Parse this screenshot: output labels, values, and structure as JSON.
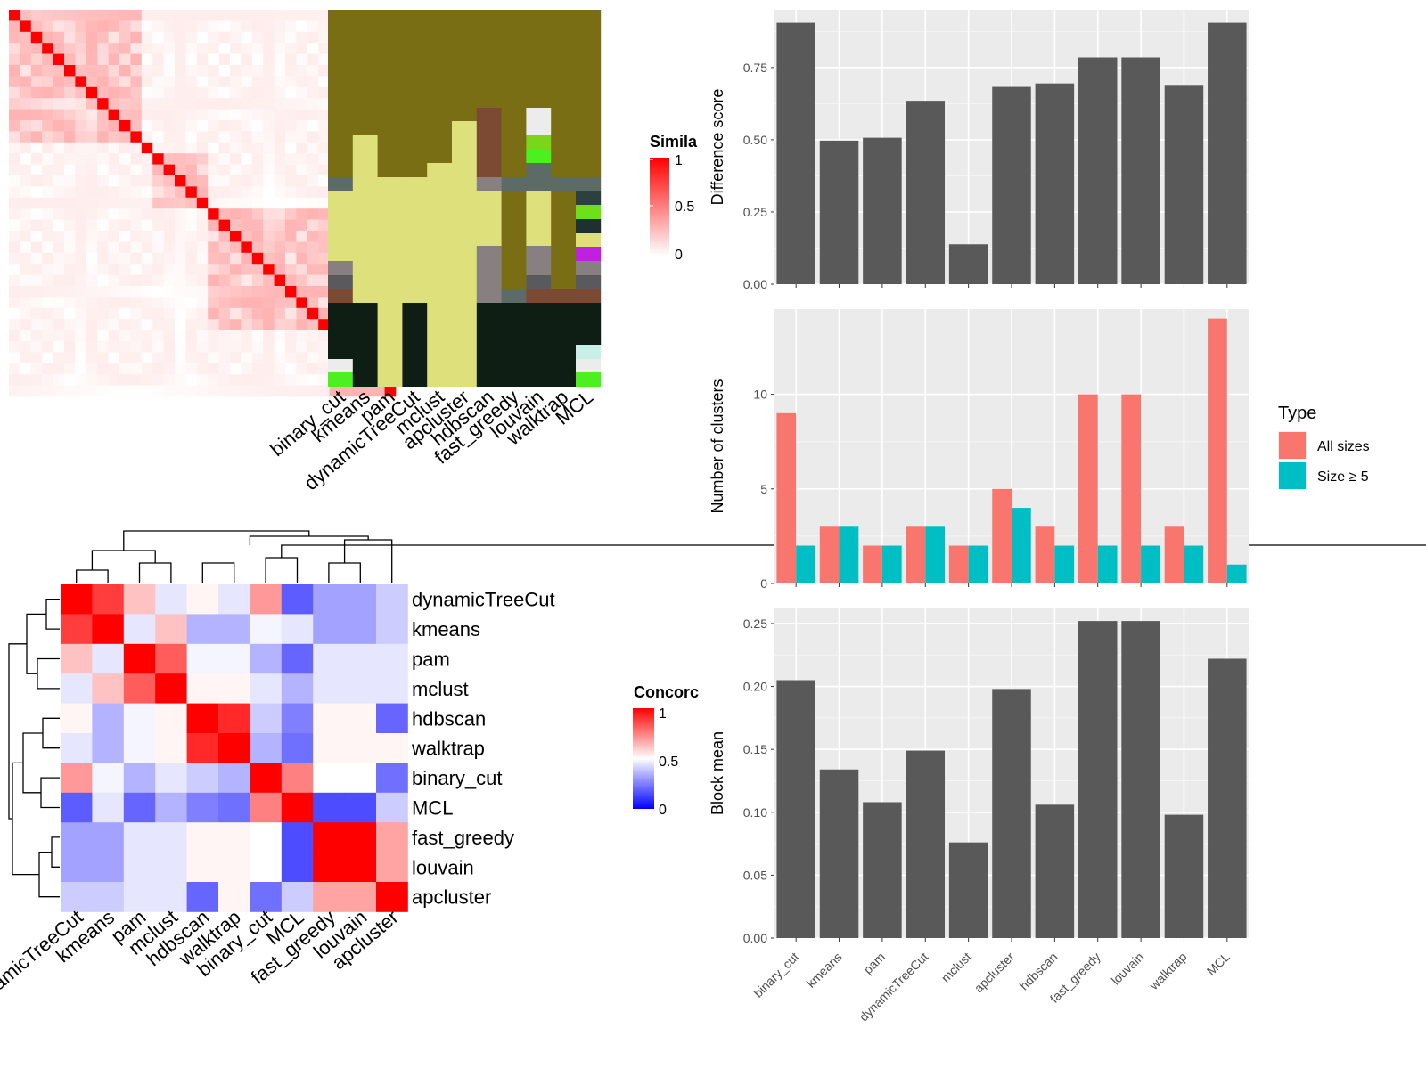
{
  "similarity_heatmap": {
    "legend_title": "Simila",
    "legend_ticks": [
      "1",
      "0.5",
      "0"
    ],
    "n_terms": 35
  },
  "annotation_panel": {
    "columns": [
      "binary_cut",
      "kmeans",
      "pam",
      "dynamicTreeCut",
      "mclust",
      "apcluster",
      "hdbscan",
      "fast_greedy",
      "louvain",
      "walktrap",
      "MCL"
    ]
  },
  "concordance_heatmap": {
    "legend_title": "Concorc",
    "legend_ticks": [
      "1",
      "0.5",
      "0"
    ],
    "labels": [
      "dynamicTreeCut",
      "kmeans",
      "pam",
      "mclust",
      "hdbscan",
      "walktrap",
      "binary_cut",
      "MCL",
      "fast_greedy",
      "louvain",
      "apcluster"
    ],
    "values": [
      [
        1.0,
        0.88,
        0.62,
        0.45,
        0.52,
        0.45,
        0.7,
        0.18,
        0.32,
        0.32,
        0.4
      ],
      [
        0.88,
        1.0,
        0.45,
        0.62,
        0.35,
        0.35,
        0.48,
        0.45,
        0.32,
        0.32,
        0.4
      ],
      [
        0.62,
        0.45,
        1.0,
        0.82,
        0.48,
        0.48,
        0.35,
        0.2,
        0.45,
        0.45,
        0.45
      ],
      [
        0.45,
        0.62,
        0.82,
        1.0,
        0.52,
        0.52,
        0.45,
        0.35,
        0.45,
        0.45,
        0.45
      ],
      [
        0.52,
        0.35,
        0.48,
        0.52,
        1.0,
        0.92,
        0.4,
        0.25,
        0.52,
        0.52,
        0.2
      ],
      [
        0.45,
        0.35,
        0.48,
        0.52,
        0.92,
        1.0,
        0.35,
        0.22,
        0.52,
        0.52,
        0.52
      ],
      [
        0.7,
        0.48,
        0.35,
        0.45,
        0.4,
        0.35,
        1.0,
        0.75,
        0.5,
        0.5,
        0.22
      ],
      [
        0.18,
        0.45,
        0.2,
        0.35,
        0.25,
        0.22,
        0.75,
        1.0,
        0.15,
        0.15,
        0.4
      ],
      [
        0.32,
        0.32,
        0.45,
        0.45,
        0.52,
        0.52,
        0.5,
        0.15,
        1.0,
        1.0,
        0.68
      ],
      [
        0.32,
        0.32,
        0.45,
        0.45,
        0.52,
        0.52,
        0.5,
        0.15,
        1.0,
        1.0,
        0.68
      ],
      [
        0.4,
        0.4,
        0.45,
        0.45,
        0.2,
        0.52,
        0.22,
        0.4,
        0.68,
        0.68,
        1.0
      ]
    ]
  },
  "chart_data": [
    {
      "type": "bar",
      "categories": [
        "binary_cut",
        "kmeans",
        "pam",
        "dynamicTreeCut",
        "mclust",
        "apcluster",
        "hdbscan",
        "fast_greedy",
        "louvain",
        "walktrap",
        "MCL"
      ],
      "values": [
        0.905,
        0.497,
        0.507,
        0.635,
        0.138,
        0.683,
        0.695,
        0.785,
        0.785,
        0.69,
        0.905
      ],
      "ylabel": "Difference score",
      "ylim": [
        0,
        0.95
      ],
      "yticks": [
        0,
        0.25,
        0.5,
        0.75
      ],
      "ytick_labels": [
        "0.00",
        "0.25",
        "0.50",
        "0.75"
      ],
      "grid": true
    },
    {
      "type": "bar",
      "categories": [
        "binary_cut",
        "kmeans",
        "pam",
        "dynamicTreeCut",
        "mclust",
        "apcluster",
        "hdbscan",
        "fast_greedy",
        "louvain",
        "walktrap",
        "MCL"
      ],
      "series": [
        {
          "name": "All sizes",
          "values": [
            9,
            3,
            2,
            3,
            2,
            5,
            3,
            10,
            10,
            3,
            14
          ],
          "color": "#F8766D"
        },
        {
          "name": "Size ≥ 5",
          "values": [
            2,
            3,
            2,
            3,
            2,
            4,
            2,
            2,
            2,
            2,
            1
          ],
          "color": "#00BFC4"
        }
      ],
      "ylabel": "Number of clusters",
      "ylim": [
        0,
        14.5
      ],
      "yticks": [
        0,
        5,
        10
      ],
      "ytick_labels": [
        "0",
        "5",
        "10"
      ],
      "legend_title": "Type",
      "legend_position": "right",
      "grid": true
    },
    {
      "type": "bar",
      "categories": [
        "binary_cut",
        "kmeans",
        "pam",
        "dynamicTreeCut",
        "mclust",
        "apcluster",
        "hdbscan",
        "fast_greedy",
        "louvain",
        "walktrap",
        "MCL"
      ],
      "values": [
        0.205,
        0.134,
        0.108,
        0.149,
        0.076,
        0.198,
        0.106,
        0.252,
        0.252,
        0.098,
        0.222
      ],
      "ylabel": "Block mean",
      "ylim": [
        0,
        0.262
      ],
      "yticks": [
        0,
        0.05,
        0.1,
        0.15,
        0.2,
        0.25
      ],
      "ytick_labels": [
        "0.00",
        "0.05",
        "0.10",
        "0.15",
        "0.20",
        "0.25"
      ],
      "grid": true
    }
  ]
}
